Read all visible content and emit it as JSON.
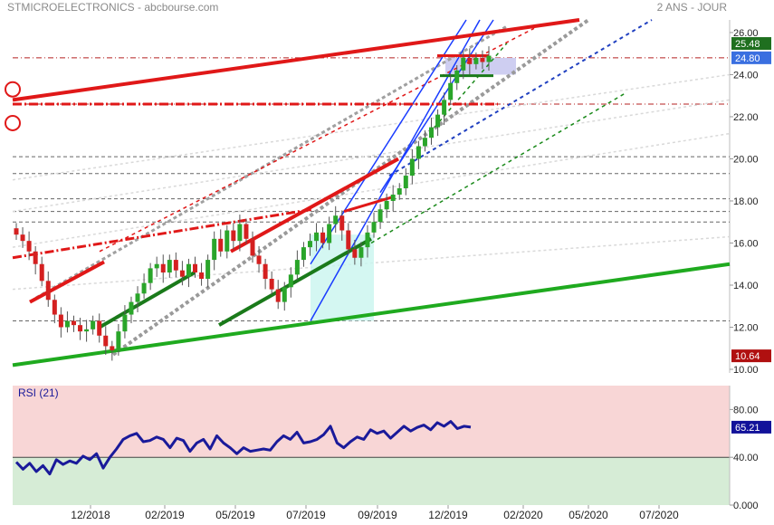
{
  "header": {
    "title": "STMICROELECTRONICS - abcbourse.com",
    "period": "2 ANS - JOUR"
  },
  "colors": {
    "bull_candle": "#2aa52a",
    "bear_candle": "#d42020",
    "resistance": "#e01818",
    "support": "#1faa1f",
    "channel": "#1a3cff",
    "rsi_line": "#1a1a9a",
    "rsi_overbought_fill": "#f8d6d6",
    "rsi_oversold_fill": "#d6ecd6",
    "last_price_badge": "#1f6f1f",
    "current_badge": "#3a6fe0",
    "low_badge": "#b01010",
    "rsi_badge": "#12129a"
  },
  "chart_data": [
    {
      "type": "candlestick",
      "title": "STMICROELECTRONICS - abcbourse.com",
      "period": "2 ANS - JOUR",
      "x_ticks": [
        "12/2018",
        "02/2019",
        "05/2019",
        "07/2019",
        "09/2019",
        "12/2019",
        "02/2020",
        "05/2020",
        "07/2020"
      ],
      "y_ticks": [
        "26.00",
        "24.00",
        "22.00",
        "20.00",
        "18.00",
        "16.00",
        "14.00",
        "12.00",
        "10.00"
      ],
      "ylim": [
        10,
        26.6
      ],
      "badges": {
        "last_price": "25.48",
        "current": "24.80",
        "low": "10.64"
      },
      "horizontal_levels": [
        24.8,
        22.6,
        20.1,
        19.3,
        18.1,
        17.5,
        17.0,
        12.3
      ],
      "series": [
        {
          "name": "close",
          "values": [
            16.4,
            16.1,
            15.6,
            15.0,
            14.2,
            13.3,
            12.6,
            12.0,
            12.3,
            12.1,
            11.8,
            11.9,
            12.3,
            11.6,
            11.1,
            10.9,
            11.8,
            12.6,
            13.2,
            13.6,
            14.1,
            14.8,
            15.0,
            14.6,
            15.2,
            14.7,
            14.4,
            15.0,
            14.6,
            14.3,
            15.2,
            16.2,
            15.6,
            16.6,
            16.1,
            16.9,
            16.2,
            15.4,
            15.0,
            14.3,
            13.8,
            13.2,
            13.9,
            14.5,
            15.2,
            15.8,
            16.1,
            16.5,
            16.0,
            16.9,
            17.3,
            16.6,
            15.7,
            15.3,
            15.8,
            16.5,
            17.0,
            17.6,
            18.0,
            18.3,
            18.6,
            19.2,
            20.0,
            20.6,
            21.0,
            21.5,
            22.1,
            22.8,
            23.6,
            24.2,
            24.8,
            24.5,
            24.8,
            24.6,
            24.9
          ]
        }
      ]
    },
    {
      "type": "line",
      "title": "RSI (21)",
      "y_ticks": [
        "80.00",
        "40.00",
        "0.000"
      ],
      "ylim": [
        0,
        100
      ],
      "levels": [
        40,
        80
      ],
      "badge": "65.21",
      "series": [
        {
          "name": "RSI (21)",
          "values": [
            36,
            30,
            35,
            28,
            33,
            26,
            38,
            34,
            37,
            35,
            41,
            38,
            43,
            31,
            40,
            47,
            55,
            58,
            60,
            53,
            54,
            57,
            55,
            48,
            56,
            54,
            45,
            52,
            55,
            47,
            58,
            52,
            48,
            43,
            48,
            45,
            46,
            47,
            46,
            53,
            58,
            55,
            61,
            52,
            53,
            55,
            59,
            66,
            52,
            48,
            53,
            57,
            55,
            63,
            60,
            62,
            56,
            61,
            66,
            62,
            65,
            67,
            63,
            69,
            66,
            70,
            64,
            66,
            65.21
          ]
        }
      ]
    }
  ]
}
